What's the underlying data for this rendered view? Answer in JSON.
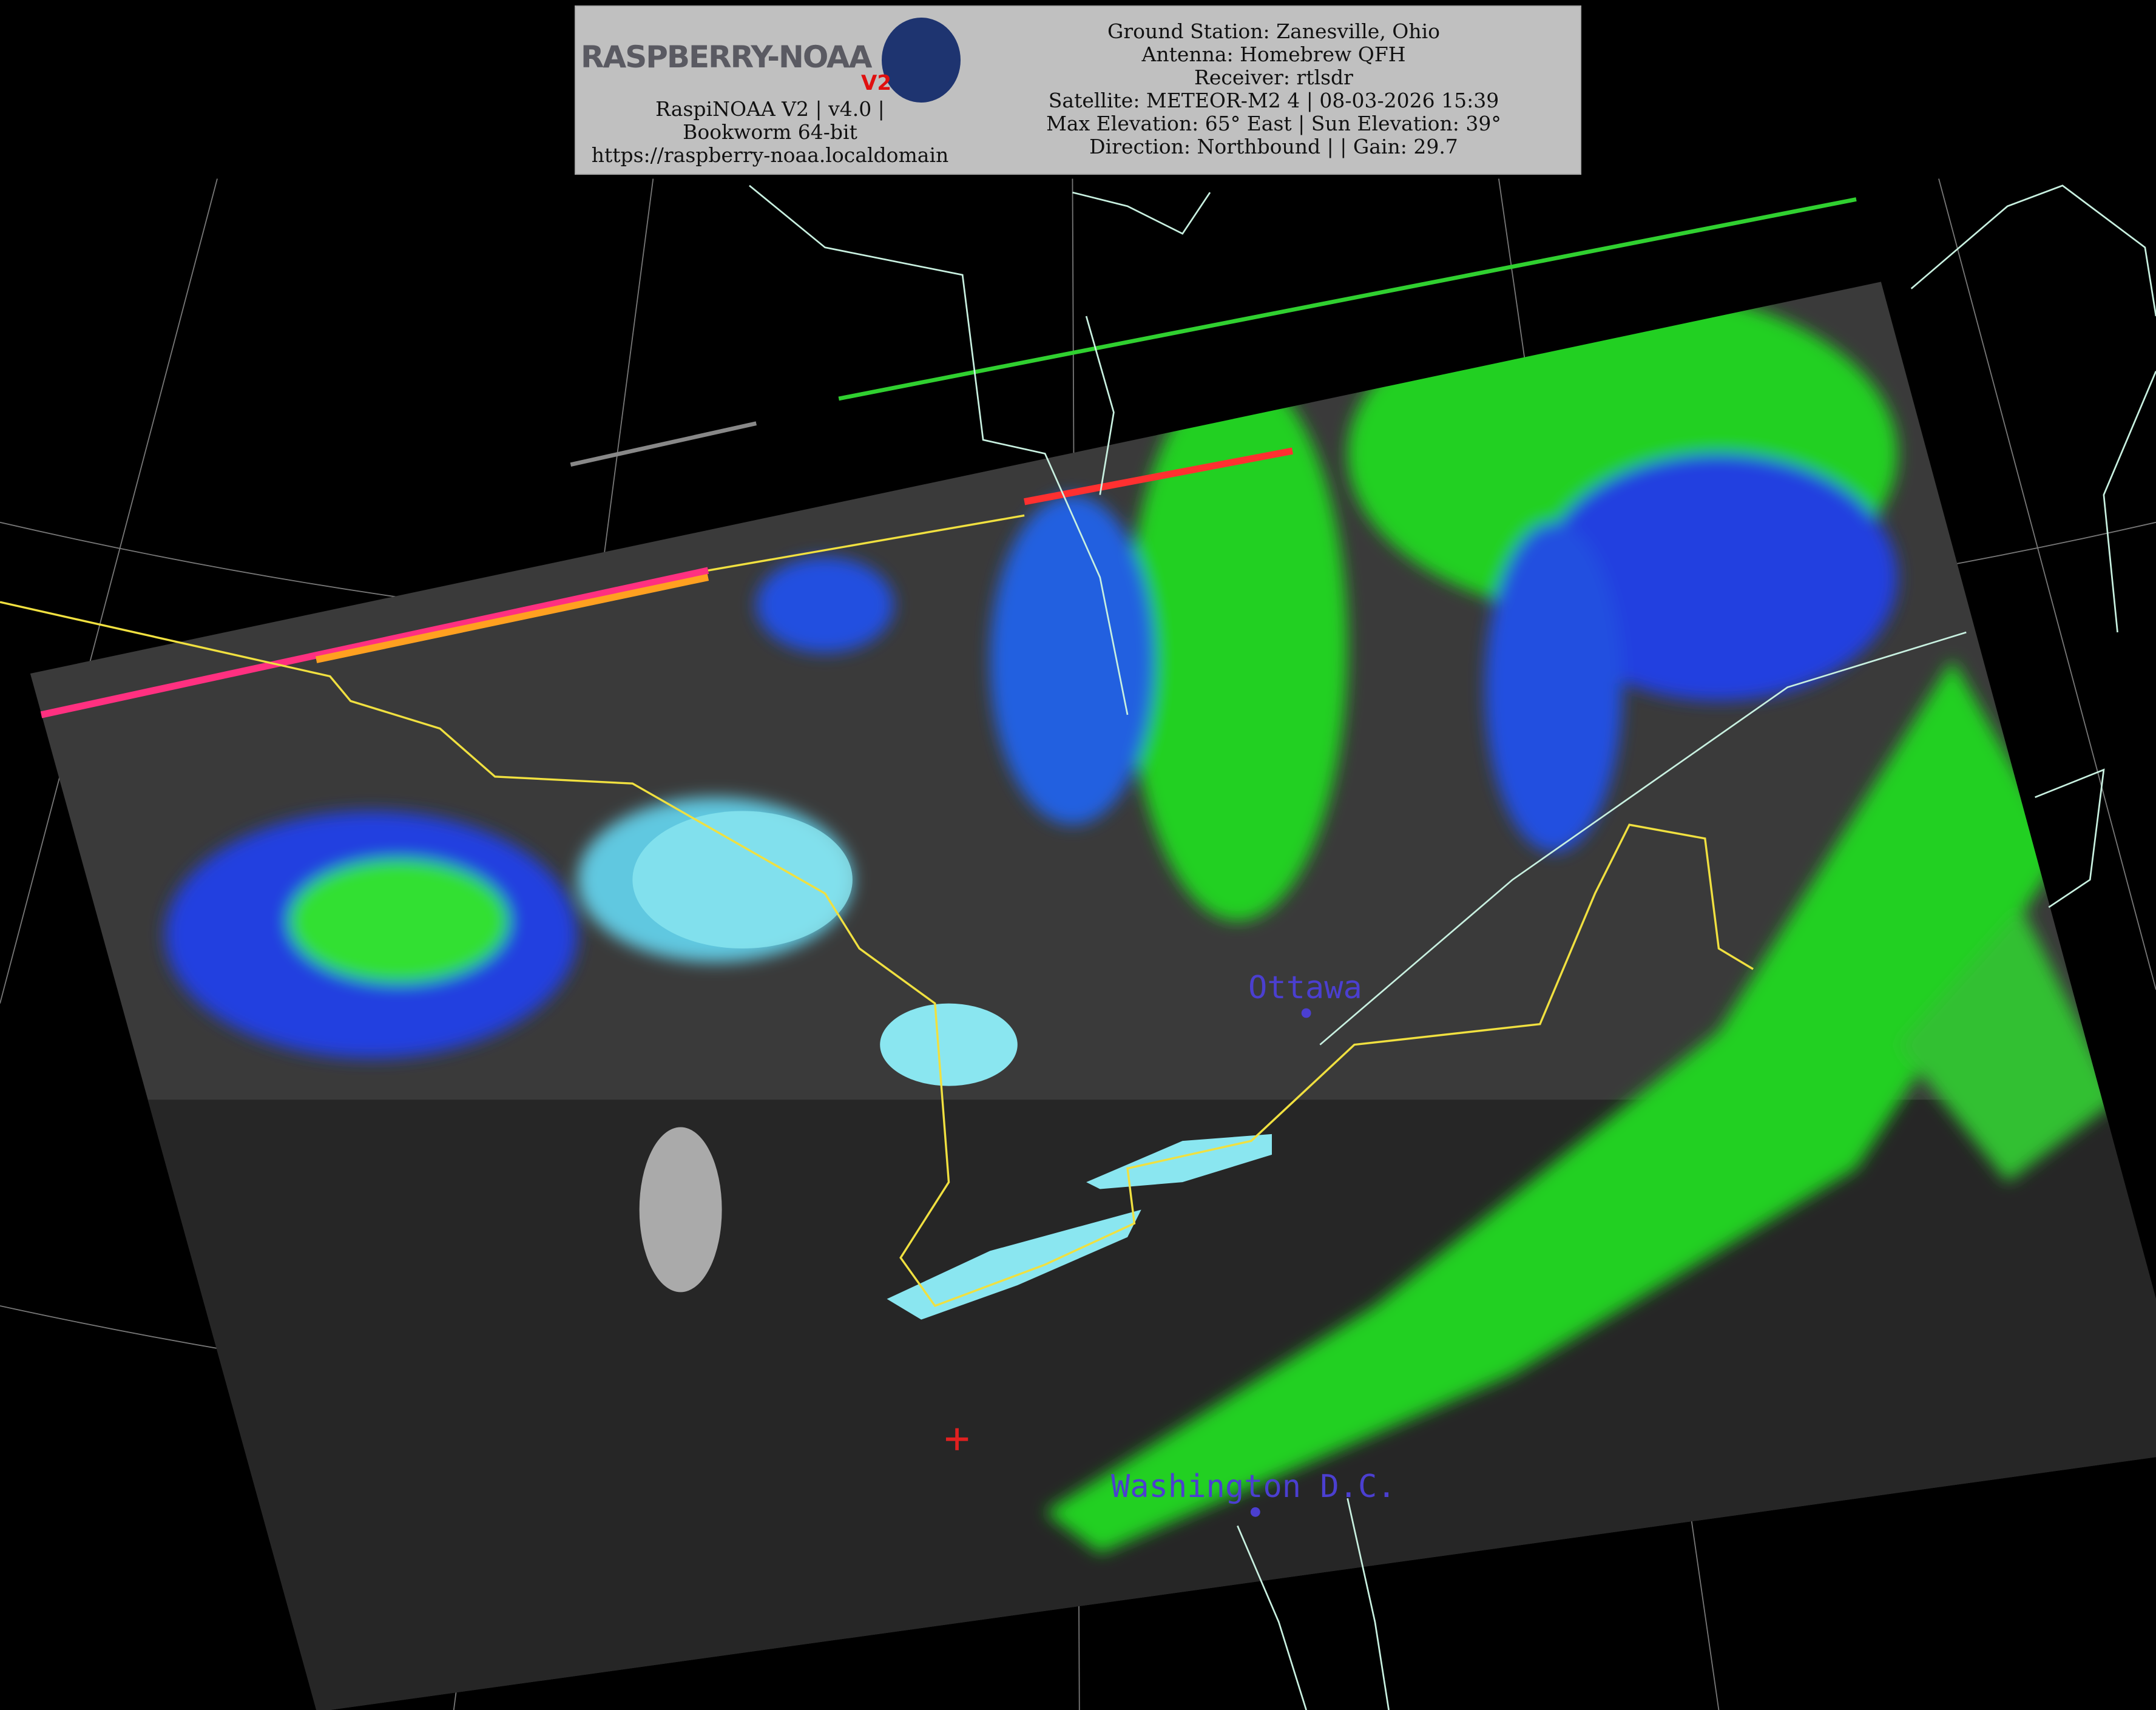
{
  "header": {
    "logo_text": "RASPBERRY-NOAA",
    "logo_badge": "V2",
    "software_line": "RaspiNOAA V2 | v4.0 | Bookworm 64-bit",
    "url": "https://raspberry-noaa.localdomain",
    "ground_station": "Ground Station: Zanesville, Ohio",
    "antenna": "Antenna: Homebrew QFH",
    "receiver": "Receiver: rtlsdr",
    "satellite": "Satellite: METEOR-M2 4 | 08-03-2026 15:39",
    "elevation": "Max Elevation: 65° East | Sun Elevation: 39°",
    "direction": "Direction: Northbound | | Gain: 29.7"
  },
  "map": {
    "cities": [
      {
        "name": "Ottawa"
      },
      {
        "name": "Washington D.C."
      }
    ],
    "colors": {
      "border": "#f0e040",
      "coastline": "#c8f0e0",
      "city_label": "#4b3fd0",
      "marker": "#e02020",
      "cloud_green": "#20e020",
      "cloud_blue": "#2040e0",
      "lake_cyan": "#80e8f0"
    },
    "icons": [
      "ground-station-marker-cross-icon",
      "city-dot-icon",
      "satellite-logo-icon"
    ]
  }
}
